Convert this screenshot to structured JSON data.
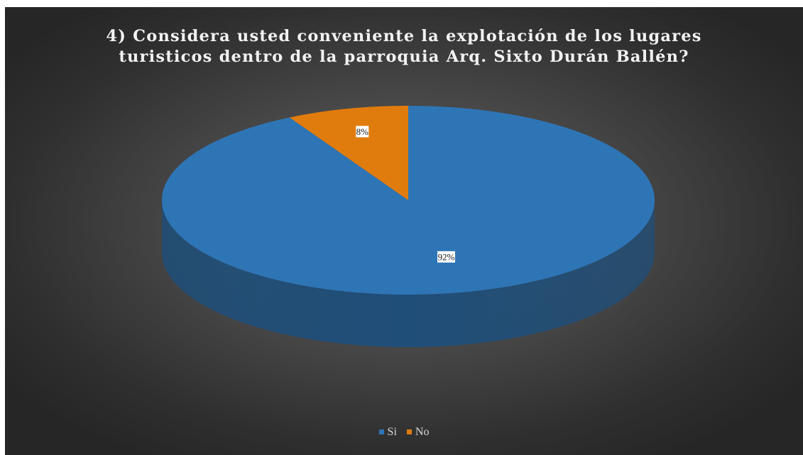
{
  "chart_data": {
    "type": "pie",
    "title": "4) Considera usted conveniente la explotación de los lugares\nturisticos dentro de la parroquia Arq. Sixto Durán Ballén?",
    "categories": [
      "Si",
      "No"
    ],
    "values": [
      92,
      8
    ],
    "data_labels": [
      "92%",
      "8%"
    ],
    "colors": [
      "#2E75B6",
      "#E07C0E"
    ],
    "side_colors": [
      "#1F4E79",
      "#9E5408"
    ],
    "legend_position": "bottom",
    "style": "3d"
  }
}
